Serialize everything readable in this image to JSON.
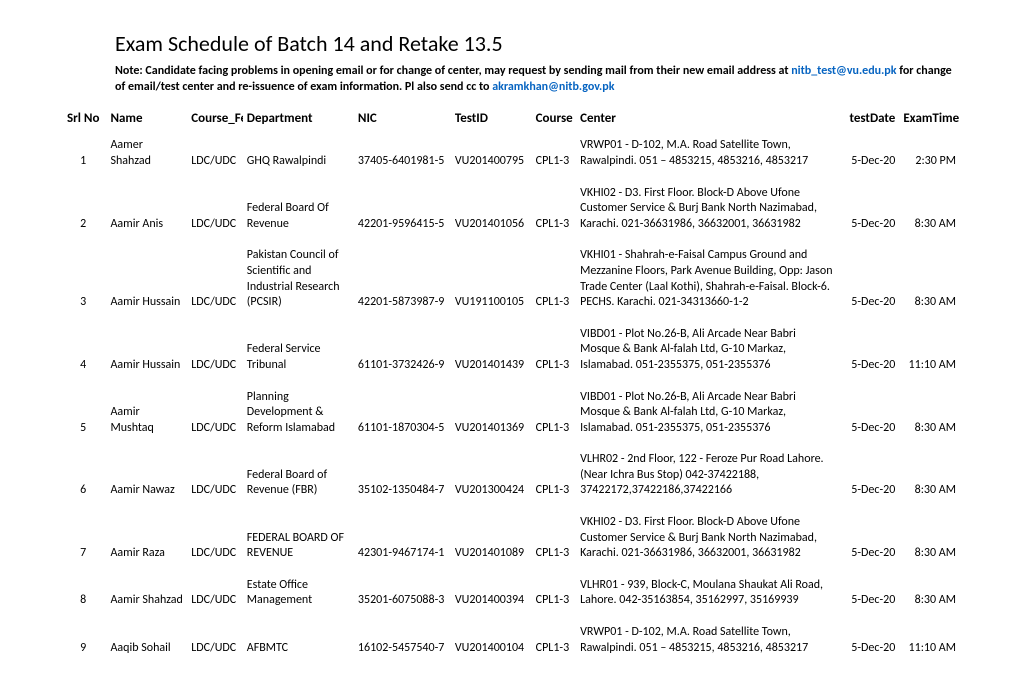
{
  "title": "Exam Schedule of Batch 14 and Retake 13.5",
  "note_prefix": "Note: Candidate facing problems in opening email or for change of center,  may request by sending mail from their new email address at ",
  "note_email1": "nitb_test@vu.edu.pk",
  "note_mid": " for change of email/test center and re-issuence of exam information. Pl also send cc to ",
  "note_email2": "akramkhan@nitb.gov.pk",
  "columns": {
    "srl": "Srl No",
    "name": "Name",
    "fee": "Course_Fee",
    "dept": "Department",
    "nic": "NIC",
    "testid": "TestID",
    "course": "Course",
    "center": "Center",
    "date": "testDate",
    "time": "ExamTime"
  },
  "rows": [
    {
      "srl": "1",
      "name": "Aamer Shahzad",
      "fee": "LDC/UDC",
      "dept": "GHQ Rawalpindi",
      "nic": "37405-6401981-5",
      "testid": "VU201400795",
      "course": "CPL1-3",
      "center": "VRWP01 - D-102, M.A. Road Satellite Town, Rawalpindi. 051 – 4853215, 4853216, 4853217",
      "date": "5-Dec-20",
      "time": "2:30 PM"
    },
    {
      "srl": "2",
      "name": "Aamir Anis",
      "fee": "LDC/UDC",
      "dept": "Federal Board Of Revenue",
      "nic": "42201-9596415-5",
      "testid": "VU201401056",
      "course": "CPL1-3",
      "center": "VKHI02 - D3. First Floor. Block-D Above Ufone Customer Service & Burj Bank  North Nazimabad, Karachi. 021-36631986, 36632001, 36631982",
      "date": "5-Dec-20",
      "time": "8:30 AM"
    },
    {
      "srl": "3",
      "name": "Aamir Hussain",
      "fee": "LDC/UDC",
      "dept": "Pakistan Council of Scientific and Industrial Research (PCSIR)",
      "nic": "42201-5873987-9",
      "testid": "VU191100105",
      "course": "CPL1-3",
      "center": "VKHI01 - Shahrah-e-Faisal Campus Ground and Mezzanine Floors, Park Avenue Building, Opp: Jason Trade Center (Laal Kothi), Shahrah-e-Faisal. Block-6. PECHS. Karachi. 021-34313660-1-2",
      "date": "5-Dec-20",
      "time": "8:30 AM"
    },
    {
      "srl": "4",
      "name": "Aamir Hussain",
      "fee": "LDC/UDC",
      "dept": "Federal Service Tribunal",
      "nic": "61101-3732426-9",
      "testid": "VU201401439",
      "course": "CPL1-3",
      "center": "VIBD01 - Plot No.26-B, Ali Arcade Near Babri Mosque & Bank Al-falah Ltd, G-10 Markaz, Islamabad. 051-2355375, 051-2355376",
      "date": "5-Dec-20",
      "time": "11:10 AM"
    },
    {
      "srl": "5",
      "name": "Aamir Mushtaq",
      "fee": "LDC/UDC",
      "dept": "Planning Development & Reform Islamabad",
      "nic": "61101-1870304-5",
      "testid": "VU201401369",
      "course": "CPL1-3",
      "center": "VIBD01 - Plot No.26-B, Ali Arcade Near Babri Mosque & Bank Al-falah Ltd, G-10 Markaz, Islamabad. 051-2355375, 051-2355376",
      "date": "5-Dec-20",
      "time": "8:30 AM"
    },
    {
      "srl": "6",
      "name": "Aamir Nawaz",
      "fee": "LDC/UDC",
      "dept": "Federal Board of Revenue (FBR)",
      "nic": "35102-1350484-7",
      "testid": "VU201300424",
      "course": "CPL1-3",
      "center": "VLHR02 - 2nd Floor, 122 - Feroze Pur Road Lahore. (Near Ichra Bus Stop) 042-37422188, 37422172,37422186,37422166",
      "date": "5-Dec-20",
      "time": "8:30 AM"
    },
    {
      "srl": "7",
      "name": "Aamir Raza",
      "fee": "LDC/UDC",
      "dept": "FEDERAL BOARD OF REVENUE",
      "nic": "42301-9467174-1",
      "testid": "VU201401089",
      "course": "CPL1-3",
      "center": "VKHI02 - D3. First Floor. Block-D Above Ufone Customer Service & Burj Bank  North Nazimabad, Karachi. 021-36631986, 36632001, 36631982",
      "date": "5-Dec-20",
      "time": "8:30 AM"
    },
    {
      "srl": "8",
      "name": "Aamir Shahzad",
      "fee": "LDC/UDC",
      "dept": "Estate Office Management",
      "nic": "35201-6075088-3",
      "testid": "VU201400394",
      "course": "CPL1-3",
      "center": "VLHR01 - 939, Block-C, Moulana Shaukat Ali Road, Lahore. 042-35163854, 35162997, 35169939",
      "date": "5-Dec-20",
      "time": "8:30 AM"
    },
    {
      "srl": "9",
      "name": "Aaqib Sohail",
      "fee": "LDC/UDC",
      "dept": "AFBMTC",
      "nic": "16102-5457540-7",
      "testid": "VU201400104",
      "course": "CPL1-3",
      "center": "VRWP01 - D-102, M.A. Road Satellite Town, Rawalpindi. 051 – 4853215, 4853216, 4853217",
      "date": "5-Dec-20",
      "time": "11:10 AM"
    }
  ]
}
